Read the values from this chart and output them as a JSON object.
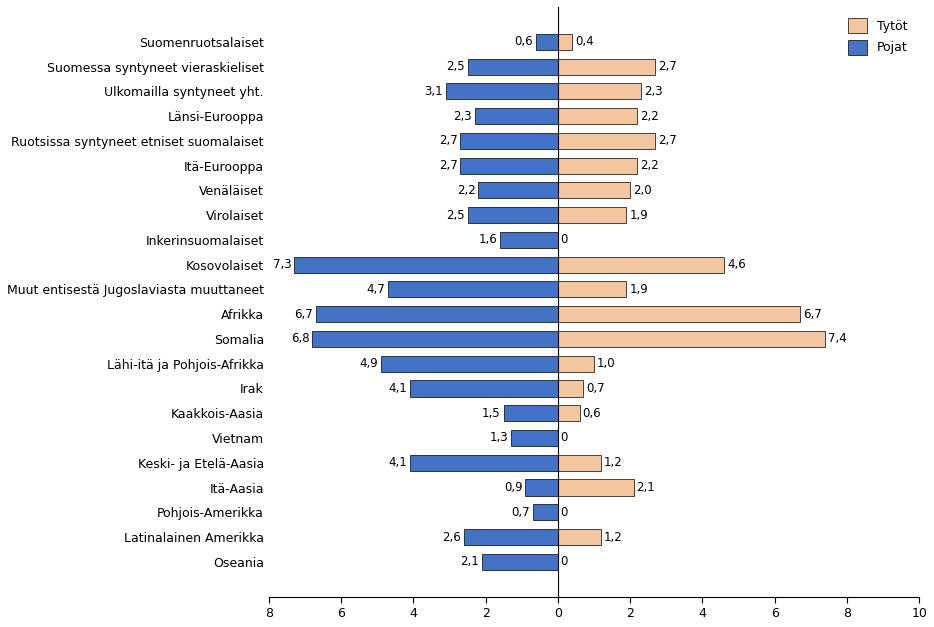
{
  "categories": [
    "Suomenruotsalaiset",
    "Suomessa syntyneet vieraskieliset",
    "Ulkomailla syntyneet yht.",
    "Länsi-Eurooppa",
    "Ruotsissa syntyneet etniset suomalaiset",
    "Itä-Eurooppa",
    "Venäläiset",
    "Virolaiset",
    "Inkerinsuomalaiset",
    "Kosovolaiset",
    "Muut entisestä Jugoslaviasta muuttaneet",
    "Afrikka",
    "Somalia",
    "Lähi-itä ja Pohjois-Afrikka",
    "Irak",
    "Kaakkois-Aasia",
    "Vietnam",
    "Keski- ja Etelä-Aasia",
    "Itä-Aasia",
    "Pohjois-Amerikka",
    "Latinalainen Amerikka",
    "Oseania"
  ],
  "pojat": [
    0.6,
    2.5,
    3.1,
    2.3,
    2.7,
    2.7,
    2.2,
    2.5,
    1.6,
    7.3,
    4.7,
    6.7,
    6.8,
    4.9,
    4.1,
    1.5,
    1.3,
    4.1,
    0.9,
    0.7,
    2.6,
    2.1
  ],
  "tyto": [
    0.4,
    2.7,
    2.3,
    2.2,
    2.7,
    2.2,
    2.0,
    1.9,
    0.0,
    4.6,
    1.9,
    6.7,
    7.4,
    1.0,
    0.7,
    0.6,
    0.0,
    1.2,
    2.1,
    0.0,
    1.2,
    0.0
  ],
  "pojat_color": "#4472C4",
  "tyto_color": "#F4C6A0",
  "xlim_left": -8,
  "xlim_right": 10,
  "xticks": [
    -8,
    -6,
    -4,
    -2,
    0,
    2,
    4,
    6,
    8,
    10
  ],
  "xtick_labels": [
    "8",
    "6",
    "4",
    "2",
    "0",
    "2",
    "4",
    "6",
    "8",
    "10"
  ],
  "legend_tyto": "Tytöt",
  "legend_pojat": "Pojat",
  "figsize": [
    9.34,
    6.27
  ],
  "dpi": 100
}
